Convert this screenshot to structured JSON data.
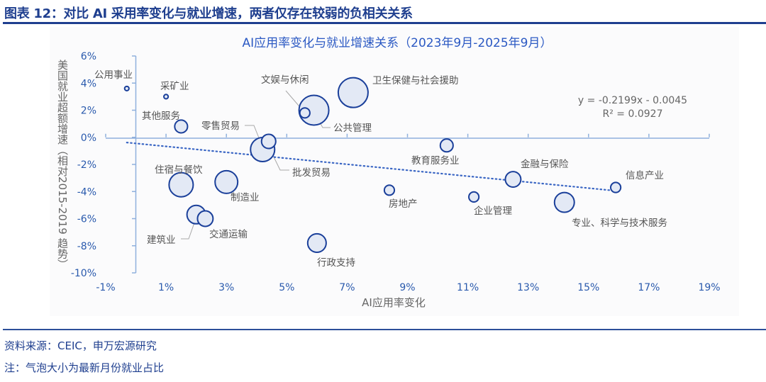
{
  "figure": {
    "title": "图表 12：对比 AI 采用率变化与就业增速，两者仅存在较弱的负相关关系",
    "source": "资料来源：CEIC，申万宏源研究",
    "note": "注：气泡大小为最新月份就业占比"
  },
  "chart_data": {
    "type": "scatter",
    "subtype": "bubble",
    "title": "AI应用率变化与就业增速关系（2023年9月-2025年9月）",
    "xlabel": "AI应用率变化",
    "ylabel": "美国就业超额增速（相对2015-2019 趋势）",
    "xlim": [
      -1,
      19
    ],
    "ylim": [
      -10,
      6
    ],
    "x_ticks": [
      "-1%",
      "1%",
      "3%",
      "5%",
      "7%",
      "9%",
      "11%",
      "13%",
      "15%",
      "17%",
      "19%"
    ],
    "y_ticks": [
      "6%",
      "4%",
      "2%",
      "0%",
      "-2%",
      "-4%",
      "-6%",
      "-8%",
      "-10%"
    ],
    "units": "%",
    "size_meaning": "最新月份就业占比 (estimated relative size)",
    "grid": false,
    "colors": {
      "bubble_stroke": "#1a3f9a",
      "bubble_fill": "#e3e9f5",
      "trendline": "#3a66c4",
      "axis": "#8fb0dd",
      "tick_label": "#2a5aad",
      "title": "#2b59c3"
    },
    "points": [
      {
        "label": "公用事业",
        "x": -0.3,
        "y": 3.6,
        "size": 0.3
      },
      {
        "label": "采矿业",
        "x": 1.0,
        "y": 3.0,
        "size": 0.3
      },
      {
        "label": "其他服务",
        "x": 1.5,
        "y": 0.8,
        "size": 2.6
      },
      {
        "label": "零售贸易",
        "x": 4.4,
        "y": -0.3,
        "size": 3.2
      },
      {
        "label": "批发贸易",
        "x": 4.2,
        "y": -0.9,
        "size": 9.2
      },
      {
        "label": "文娱与休闲",
        "x": 5.6,
        "y": 1.8,
        "size": 1.6
      },
      {
        "label": "公共管理",
        "x": 5.9,
        "y": 2.0,
        "size": 14.0
      },
      {
        "label": "卫生保健与社会援助",
        "x": 7.2,
        "y": 3.3,
        "size": 14.0
      },
      {
        "label": "住宿与餐饮",
        "x": 1.5,
        "y": -3.5,
        "size": 9.2
      },
      {
        "label": "制造业",
        "x": 3.0,
        "y": -3.3,
        "size": 8.1
      },
      {
        "label": "建筑业",
        "x": 2.0,
        "y": -5.7,
        "size": 5.4
      },
      {
        "label": "交通运输",
        "x": 2.3,
        "y": -6.0,
        "size": 3.8
      },
      {
        "label": "行政支持",
        "x": 6.0,
        "y": -7.8,
        "size": 5.4
      },
      {
        "label": "房地产",
        "x": 8.4,
        "y": -3.9,
        "size": 1.6
      },
      {
        "label": "教育服务业",
        "x": 10.3,
        "y": -0.6,
        "size": 2.6
      },
      {
        "label": "企业管理",
        "x": 11.2,
        "y": -4.4,
        "size": 1.6
      },
      {
        "label": "金融与保险",
        "x": 12.5,
        "y": -3.1,
        "size": 3.8
      },
      {
        "label": "专业、科学与技术服务",
        "x": 14.2,
        "y": -4.8,
        "size": 6.2
      },
      {
        "label": "信息产业",
        "x": 15.9,
        "y": -3.7,
        "size": 1.6
      }
    ],
    "trendline": {
      "type": "linear",
      "slope": -0.2199,
      "intercept": -0.0045,
      "equation": "y = -0.2199x - 0.0045",
      "r_squared": "R² = 0.0927"
    }
  }
}
